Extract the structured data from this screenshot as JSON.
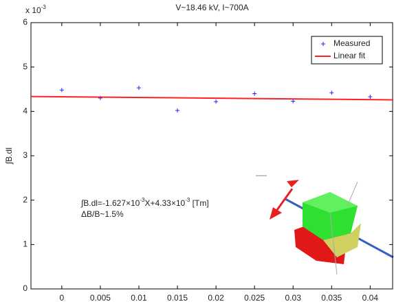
{
  "chart_data": {
    "type": "scatter",
    "title": "V~18.46 kV, I~700A",
    "y_label": "∫B.dl",
    "y_multiplier": [
      "x 10",
      "-3"
    ],
    "xlim": [
      -0.004,
      0.043
    ],
    "xticks": [
      0,
      0.005,
      0.01,
      0.015,
      0.02,
      0.025,
      0.03,
      0.035,
      0.04
    ],
    "ylim": [
      0,
      6
    ],
    "yticks": [
      0,
      1,
      2,
      3,
      4,
      5,
      6
    ],
    "legend": "upper right",
    "series": [
      {
        "name": "Measured",
        "type": "scatter",
        "color": "#2020ff",
        "x": [
          0,
          0.005,
          0.01,
          0.015,
          0.02,
          0.025,
          0.03,
          0.035,
          0.04
        ],
        "values": [
          4.48,
          4.3,
          4.53,
          4.02,
          4.22,
          4.4,
          4.23,
          4.42,
          4.33
        ]
      },
      {
        "name": "Linear fit",
        "type": "line",
        "color": "#ff2020",
        "x": [
          -0.004,
          0.043
        ],
        "values": [
          4.3365,
          4.26
        ]
      }
    ],
    "annotation": [
      "∫B.dl=-1.627×10",
      "-3",
      "X+4.33×10",
      "-3",
      " [Tm]"
    ],
    "annotation2": "ΔB/B~1.5%"
  }
}
